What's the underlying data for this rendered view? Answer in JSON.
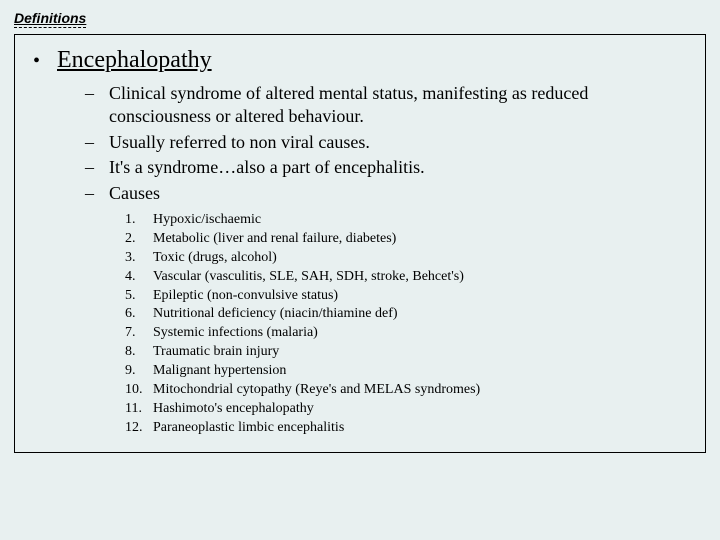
{
  "title": "Definitions",
  "term": "Encephalopathy",
  "bullet_char": "•",
  "dash_char": "–",
  "sub_items": [
    "Clinical syndrome of altered mental status, manifesting as reduced consciousness or altered behaviour.",
    "Usually referred to non viral causes.",
    "It's a syndrome…also a part of encephalitis.",
    "Causes"
  ],
  "numbered": [
    {
      "n": "1.",
      "text": "Hypoxic/ischaemic"
    },
    {
      "n": "2.",
      "text": "Metabolic (liver and renal failure, diabetes)"
    },
    {
      "n": "3.",
      "text": "Toxic (drugs, alcohol)"
    },
    {
      "n": "4.",
      "text": "Vascular (vasculitis, SLE, SAH, SDH, stroke, Behcet's)"
    },
    {
      "n": "5.",
      "text": "Epileptic (non-convulsive status)"
    },
    {
      "n": "6.",
      "text": "Nutritional deficiency (niacin/thiamine def)"
    },
    {
      "n": "7.",
      "text": "Systemic infections (malaria)"
    },
    {
      "n": "8.",
      "text": "Traumatic brain injury"
    },
    {
      "n": "9.",
      "text": "Malignant hypertension"
    },
    {
      "n": "10.",
      "text": "Mitochondrial cytopathy (Reye's and MELAS syndromes)"
    },
    {
      "n": "11.",
      "text": "Hashimoto's encephalopathy"
    },
    {
      "n": "12.",
      "text": "Paraneoplastic limbic encephalitis"
    }
  ],
  "colors": {
    "background": "#e8f0f0",
    "text": "#000000",
    "border": "#000000"
  },
  "fonts": {
    "title_family": "Arial",
    "body_family": "Times New Roman",
    "title_size_pt": 11,
    "term_size_pt": 18,
    "sub_size_pt": 14,
    "num_size_pt": 11
  }
}
